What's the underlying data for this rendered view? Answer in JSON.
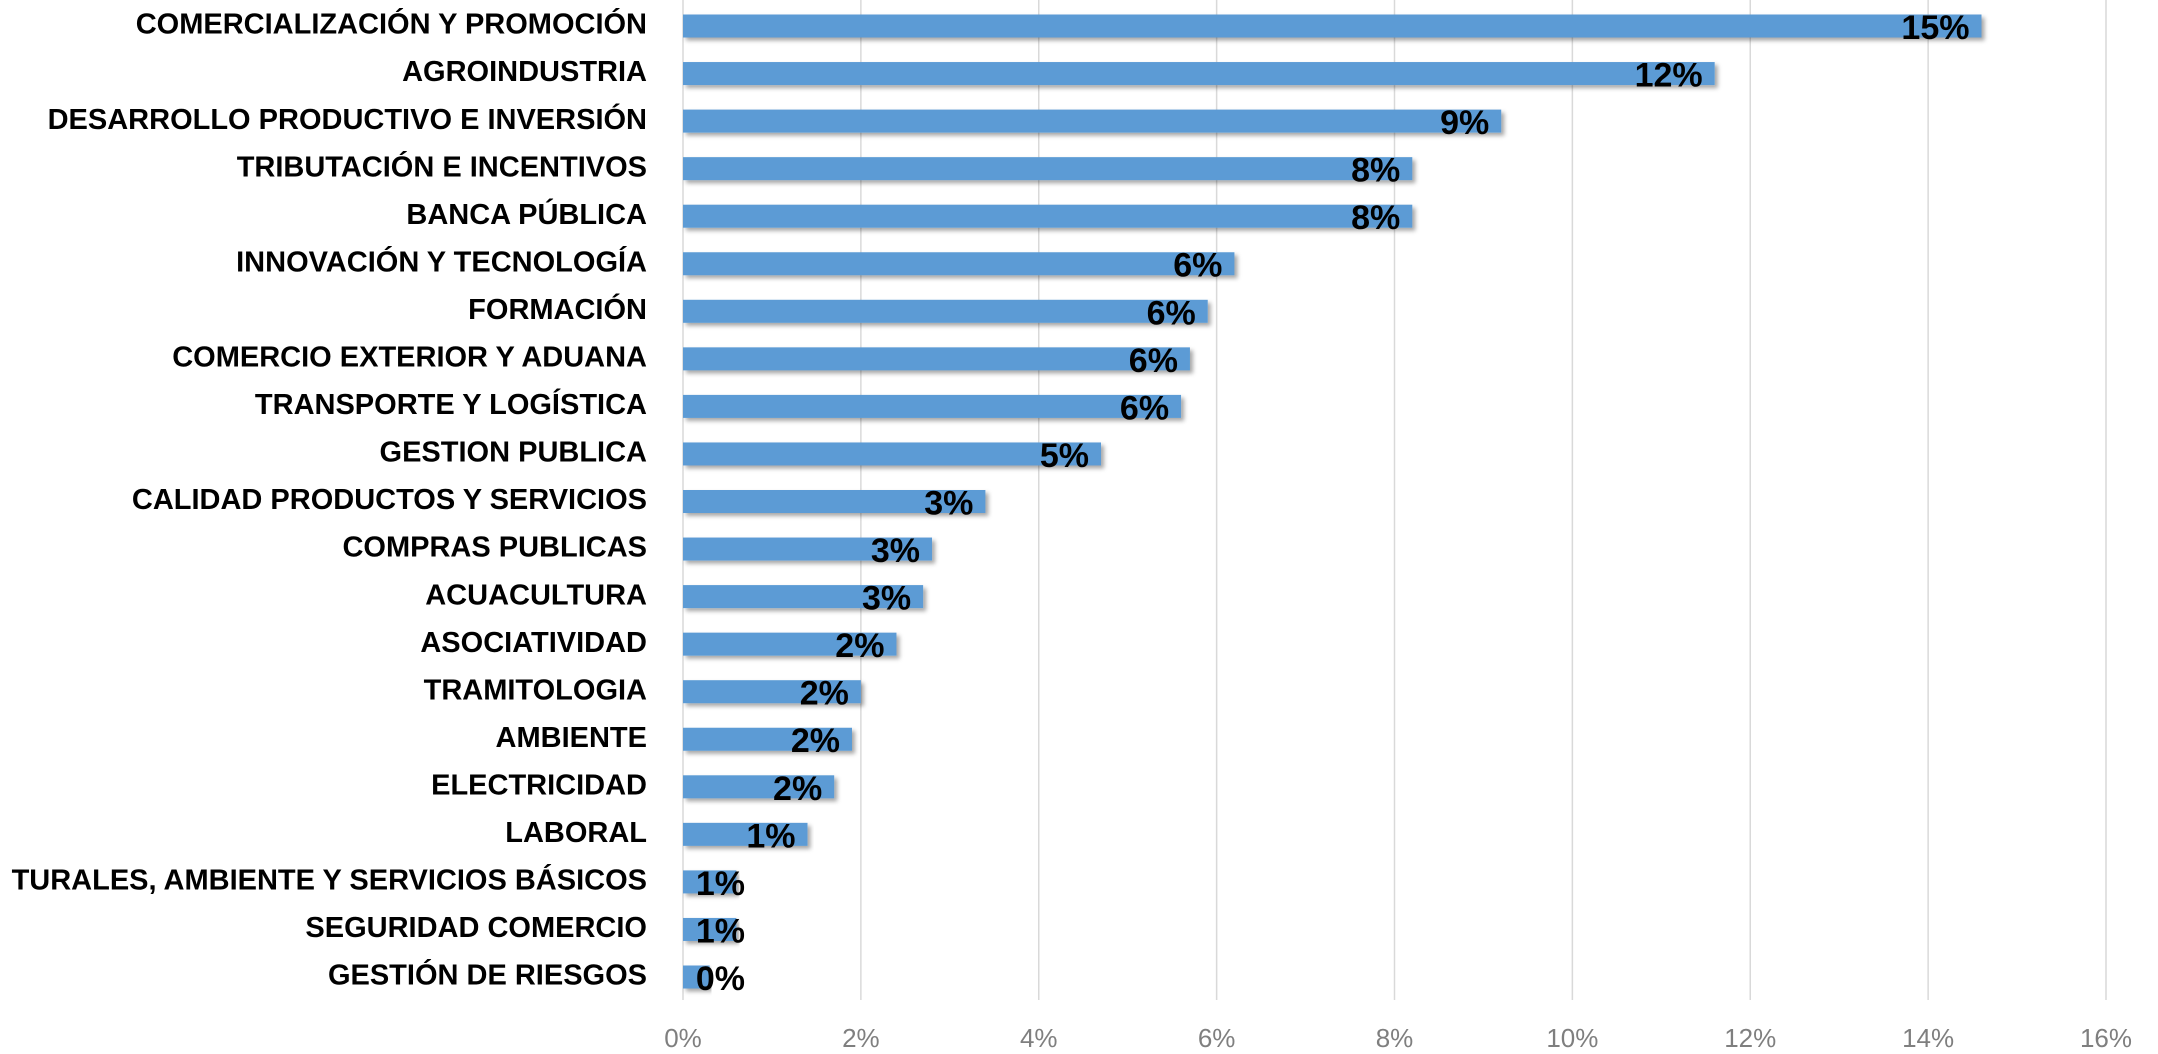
{
  "chart_data": {
    "type": "hbar",
    "categories": [
      "COMERCIALIZACIÓN Y PROMOCIÓN",
      "AGROINDUSTRIA",
      "DESARROLLO PRODUCTIVO E INVERSIÓN",
      "TRIBUTACIÓN E INCENTIVOS",
      "BANCA PÚBLICA",
      "INNOVACIÓN Y TECNOLOGÍA",
      "FORMACIÓN",
      "COMERCIO EXTERIOR Y ADUANA",
      "TRANSPORTE Y LOGÍSTICA",
      "GESTION PUBLICA",
      "CALIDAD PRODUCTOS Y SERVICIOS",
      "COMPRAS PUBLICAS",
      "ACUACULTURA",
      "ASOCIATIVIDAD",
      "TRAMITOLOGIA",
      "AMBIENTE",
      "ELECTRICIDAD",
      "LABORAL",
      "TURALES, AMBIENTE Y SERVICIOS BÁSICOS",
      "SEGURIDAD COMERCIO",
      "GESTIÓN DE RIESGOS"
    ],
    "values": [
      14.6,
      11.6,
      9.2,
      8.2,
      8.2,
      6.2,
      5.9,
      5.7,
      5.6,
      4.7,
      3.4,
      2.8,
      2.7,
      2.4,
      2.0,
      1.9,
      1.7,
      1.4,
      0.6,
      0.6,
      0.3
    ],
    "value_labels": [
      "15%",
      "12%",
      "9%",
      "8%",
      "8%",
      "6%",
      "6%",
      "6%",
      "6%",
      "5%",
      "3%",
      "3%",
      "3%",
      "2%",
      "2%",
      "2%",
      "2%",
      "1%",
      "1%",
      "1%",
      "0%"
    ],
    "color": "#5b9bd5",
    "xlim": [
      0,
      16
    ],
    "xticks": [
      {
        "value": 0,
        "label": "0%"
      },
      {
        "value": 2,
        "label": "2%"
      },
      {
        "value": 4,
        "label": "4%"
      },
      {
        "value": 6,
        "label": "6%"
      },
      {
        "value": 8,
        "label": "8%"
      },
      {
        "value": 10,
        "label": "10%"
      },
      {
        "value": 12,
        "label": "12%"
      },
      {
        "value": 14,
        "label": "14%"
      },
      {
        "value": 16,
        "label": "16%"
      }
    ],
    "grid": true
  }
}
